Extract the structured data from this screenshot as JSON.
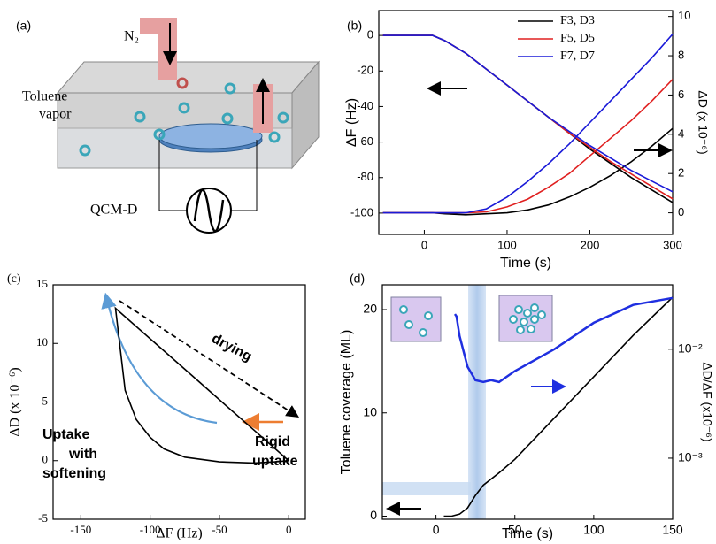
{
  "diagram": {
    "labels": [
      "(a)",
      "N₂",
      "Toluene",
      "vapor",
      "QCM-D"
    ]
  },
  "chart_data": [
    {
      "type": "line",
      "panel_label": "(b)",
      "x_label": "Time (s)",
      "y_label": "ΔF (Hz)",
      "y2_label": "ΔD (x 10⁻⁶)",
      "x": [
        -50,
        0,
        10,
        25,
        50,
        75,
        100,
        125,
        150,
        175,
        200,
        225,
        250,
        275,
        300
      ],
      "series": [
        {
          "name": "F3, D3",
          "color": "#000000",
          "values": [
            0,
            0,
            0,
            -3,
            -10,
            -19,
            -28,
            -37,
            -46,
            -55,
            -64,
            -72,
            -80,
            -87,
            -94
          ],
          "y2_values": [
            0,
            0,
            0,
            -0.05,
            -0.1,
            -0.05,
            0,
            0.15,
            0.4,
            0.8,
            1.3,
            1.9,
            2.6,
            3.4,
            4.3
          ]
        },
        {
          "name": "F5, D5",
          "color": "#e02020",
          "values": [
            0,
            0,
            0,
            -3,
            -10,
            -19,
            -28,
            -37,
            -46,
            -55,
            -63,
            -71,
            -78,
            -85,
            -92
          ],
          "y2_values": [
            0,
            0,
            0,
            0,
            0,
            0.05,
            0.3,
            0.7,
            1.3,
            2.0,
            2.9,
            3.8,
            4.7,
            5.7,
            6.8
          ]
        },
        {
          "name": "F7, D7",
          "color": "#1a1ad8",
          "values": [
            0,
            0,
            0,
            -3,
            -10,
            -19,
            -28,
            -37,
            -46,
            -54,
            -62,
            -69,
            -76,
            -82,
            -88
          ],
          "y2_values": [
            0,
            0,
            0,
            0,
            0,
            0.2,
            0.8,
            1.6,
            2.5,
            3.5,
            4.6,
            5.7,
            6.8,
            7.9,
            9.1
          ]
        }
      ],
      "xlim": [
        -55,
        300
      ],
      "xticks": [
        0,
        100,
        200,
        300
      ],
      "ylim": [
        -112,
        14
      ],
      "yticks": [
        0,
        -20,
        -40,
        -60,
        -80,
        -100
      ],
      "y2lim": [
        -1.1,
        10.3
      ],
      "y2ticks": [
        0,
        2,
        4,
        6,
        8,
        10
      ],
      "legend": "upper right"
    },
    {
      "type": "line",
      "panel_label": "(c)",
      "x_label": "ΔF (Hz)",
      "y_label": "ΔD (x 10⁻⁶)",
      "annotations": [
        "drying",
        "Uptake",
        "with",
        "softening",
        "Rigid",
        "uptake"
      ],
      "series": [
        {
          "color": "#000000",
          "x": [
            0,
            -10,
            -25,
            -50,
            -75,
            -90,
            -100,
            -110,
            -118,
            -125,
            -100,
            -75,
            -50,
            -25,
            0
          ],
          "values": [
            0,
            -0.1,
            -0.2,
            -0.1,
            0.3,
            1.0,
            2.0,
            3.5,
            6,
            13,
            10.4,
            7.8,
            5.2,
            2.6,
            0
          ]
        }
      ],
      "xlim": [
        -170,
        12
      ],
      "xticks": [
        -150,
        -100,
        -50,
        0
      ],
      "ylim": [
        -5,
        15
      ],
      "yticks": [
        -5,
        0,
        5,
        10,
        15
      ]
    },
    {
      "type": "line",
      "panel_label": "(d)",
      "x_label": "Time (s)",
      "y_label": "Toluene coverage (ML)",
      "y2_label": "ΔD/ΔF (x10⁻⁶)",
      "series": [
        {
          "color": "#000000",
          "x": [
            5,
            10,
            15,
            20,
            25,
            30,
            40,
            50,
            75,
            100,
            125,
            150
          ],
          "values": [
            0,
            0,
            0.2,
            0.8,
            2,
            3,
            4.2,
            5.5,
            9.5,
            13.5,
            17.5,
            21.2
          ]
        },
        {
          "color": "#1f2fe0",
          "axis": "y2",
          "x": [
            12,
            13,
            15,
            20,
            25,
            30,
            35,
            40,
            50,
            75,
            100,
            125,
            150
          ],
          "values": [
            0.021,
            0.02,
            0.0132,
            0.0069,
            0.0052,
            0.005,
            0.0052,
            0.005,
            0.0063,
            0.01,
            0.0175,
            0.0255,
            0.0296
          ]
        }
      ],
      "xlim": [
        -34,
        150
      ],
      "xticks": [
        0,
        50,
        100,
        150
      ],
      "ylim": [
        -0.3,
        22.4
      ],
      "yticks": [
        0,
        10,
        20
      ],
      "y2lim": [
        0.000275,
        0.039
      ],
      "y2scale": "log",
      "y2ticks": [
        {
          "value": 0.001,
          "label": "10⁻³"
        },
        {
          "value": 0.01,
          "label": "10⁻²"
        }
      ]
    }
  ]
}
